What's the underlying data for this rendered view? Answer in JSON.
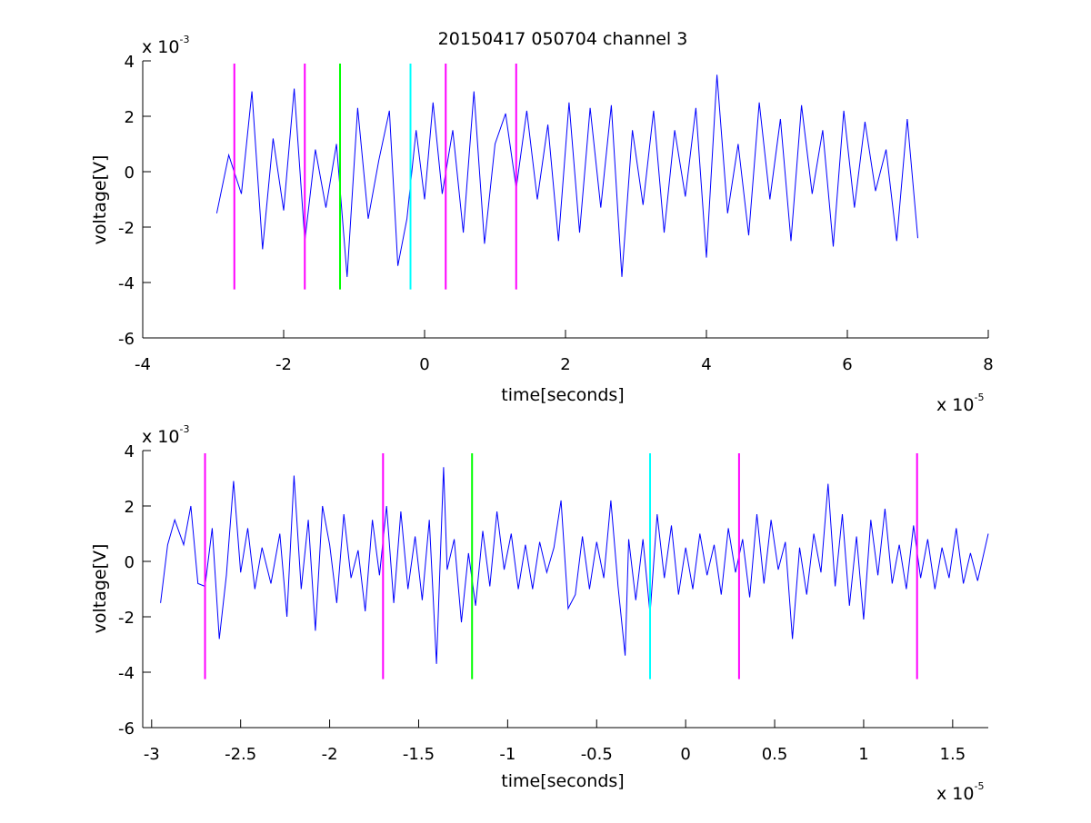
{
  "title": "20150417 050704 channel 3",
  "colors": {
    "signal": "#0000ff",
    "magenta": "#ff00ff",
    "green": "#00ff00",
    "cyan": "#00ffff",
    "axis": "#000000"
  },
  "chart_data": [
    {
      "type": "line",
      "title": "20150417 050704 channel 3",
      "xlabel": "time[seconds]",
      "ylabel": "voltage[V]",
      "x_scale_label": "x 10",
      "x_scale_power": "-5",
      "y_scale_label": "x 10",
      "y_scale_power": "-3",
      "xlim": [
        -4,
        8
      ],
      "ylim": [
        -6,
        4
      ],
      "xticks": [
        -4,
        -2,
        0,
        2,
        4,
        6,
        8
      ],
      "xtick_labels": [
        "-4",
        "-2",
        "0",
        "2",
        "4",
        "6",
        "8"
      ],
      "yticks": [
        -6,
        -4,
        -2,
        0,
        2,
        4
      ],
      "ytick_labels": [
        "-6",
        "-4",
        "-2",
        "0",
        "2",
        "4"
      ],
      "grid": false,
      "series": [
        {
          "color": "#0000ff",
          "x": [
            -2.95,
            -2.78,
            -2.6,
            -2.45,
            -2.3,
            -2.15,
            -2.0,
            -1.85,
            -1.7,
            -1.55,
            -1.4,
            -1.25,
            -1.1,
            -0.95,
            -0.8,
            -0.65,
            -0.5,
            -0.38,
            -0.25,
            -0.12,
            0.0,
            0.12,
            0.25,
            0.4,
            0.55,
            0.7,
            0.85,
            1.0,
            1.15,
            1.3,
            1.45,
            1.6,
            1.75,
            1.9,
            2.05,
            2.2,
            2.35,
            2.5,
            2.65,
            2.8,
            2.95,
            3.1,
            3.25,
            3.4,
            3.55,
            3.7,
            3.85,
            4.0,
            4.15,
            4.3,
            4.45,
            4.6,
            4.75,
            4.9,
            5.05,
            5.2,
            5.35,
            5.5,
            5.65,
            5.8,
            5.95,
            6.1,
            6.25,
            6.4,
            6.55,
            6.7,
            6.85,
            7.0
          ],
          "y": [
            -1.5,
            0.6,
            -0.8,
            2.9,
            -2.8,
            1.2,
            -1.4,
            3.0,
            -2.5,
            0.8,
            -1.3,
            1.0,
            -3.8,
            2.3,
            -1.7,
            0.4,
            2.2,
            -3.4,
            -1.7,
            1.5,
            -1.0,
            2.5,
            -0.8,
            1.5,
            -2.2,
            2.9,
            -2.6,
            1.0,
            2.1,
            -0.6,
            2.2,
            -1.0,
            1.7,
            -2.5,
            2.5,
            -2.2,
            2.3,
            -1.3,
            2.4,
            -3.8,
            1.5,
            -1.2,
            2.2,
            -2.2,
            1.5,
            -0.9,
            2.3,
            -3.1,
            3.5,
            -1.5,
            1.0,
            -2.3,
            2.5,
            -1.0,
            1.9,
            -2.5,
            2.4,
            -0.8,
            1.5,
            -2.7,
            2.2,
            -1.3,
            1.8,
            -0.7,
            0.8,
            -2.5,
            1.9,
            -2.4
          ]
        }
      ],
      "event_markers": [
        {
          "x": -2.7,
          "color": "#ff00ff"
        },
        {
          "x": -1.7,
          "color": "#ff00ff"
        },
        {
          "x": -1.2,
          "color": "#00ff00"
        },
        {
          "x": -0.2,
          "color": "#00ffff"
        },
        {
          "x": 0.3,
          "color": "#ff00ff"
        },
        {
          "x": 1.3,
          "color": "#ff00ff"
        }
      ],
      "marker_y_range": [
        -4.25,
        3.9
      ]
    },
    {
      "type": "line",
      "xlabel": "time[seconds]",
      "ylabel": "voltage[V]",
      "x_scale_label": "x 10",
      "x_scale_power": "-5",
      "y_scale_label": "x 10",
      "y_scale_power": "-3",
      "xlim": [
        -3.05,
        1.7
      ],
      "ylim": [
        -6,
        4
      ],
      "xticks": [
        -3,
        -2.5,
        -2,
        -1.5,
        -1,
        -0.5,
        0,
        0.5,
        1,
        1.5
      ],
      "xtick_labels": [
        "-3",
        "-2.5",
        "-2",
        "-1.5",
        "-1",
        "-0.5",
        "0",
        "0.5",
        "1",
        "1.5"
      ],
      "yticks": [
        -6,
        -4,
        -2,
        0,
        2,
        4
      ],
      "ytick_labels": [
        "-6",
        "-4",
        "-2",
        "0",
        "2",
        "4"
      ],
      "grid": false,
      "series": [
        {
          "color": "#0000ff",
          "x": [
            -2.95,
            -2.91,
            -2.87,
            -2.82,
            -2.78,
            -2.74,
            -2.7,
            -2.66,
            -2.62,
            -2.58,
            -2.54,
            -2.5,
            -2.46,
            -2.42,
            -2.38,
            -2.33,
            -2.28,
            -2.24,
            -2.2,
            -2.16,
            -2.12,
            -2.08,
            -2.04,
            -2.0,
            -1.96,
            -1.92,
            -1.88,
            -1.84,
            -1.8,
            -1.76,
            -1.72,
            -1.68,
            -1.64,
            -1.6,
            -1.56,
            -1.52,
            -1.48,
            -1.44,
            -1.4,
            -1.36,
            -1.34,
            -1.3,
            -1.26,
            -1.22,
            -1.18,
            -1.14,
            -1.1,
            -1.06,
            -1.02,
            -0.98,
            -0.94,
            -0.9,
            -0.86,
            -0.82,
            -0.78,
            -0.74,
            -0.7,
            -0.66,
            -0.62,
            -0.58,
            -0.54,
            -0.5,
            -0.46,
            -0.42,
            -0.38,
            -0.34,
            -0.32,
            -0.28,
            -0.24,
            -0.2,
            -0.16,
            -0.12,
            -0.08,
            -0.04,
            0.0,
            0.04,
            0.08,
            0.12,
            0.16,
            0.2,
            0.24,
            0.28,
            0.32,
            0.36,
            0.4,
            0.44,
            0.48,
            0.52,
            0.56,
            0.6,
            0.64,
            0.68,
            0.72,
            0.76,
            0.8,
            0.84,
            0.88,
            0.92,
            0.96,
            1.0,
            1.04,
            1.08,
            1.12,
            1.16,
            1.2,
            1.24,
            1.28,
            1.32,
            1.36,
            1.4,
            1.44,
            1.48,
            1.52,
            1.56,
            1.6,
            1.64,
            1.7
          ],
          "y": [
            -1.5,
            0.6,
            1.5,
            0.6,
            2.0,
            -0.8,
            -0.9,
            1.2,
            -2.8,
            -0.5,
            2.9,
            -0.4,
            1.2,
            -1.0,
            0.5,
            -0.8,
            1.0,
            -2.0,
            3.1,
            -1.0,
            1.5,
            -2.5,
            2.0,
            0.6,
            -1.5,
            1.7,
            -0.6,
            0.4,
            -1.8,
            1.5,
            -0.5,
            2.0,
            -1.5,
            1.8,
            -1.0,
            0.9,
            -1.4,
            1.5,
            -3.7,
            3.4,
            -0.3,
            0.8,
            -2.2,
            0.3,
            -1.6,
            1.1,
            -0.9,
            1.8,
            -0.3,
            1.0,
            -1.0,
            0.6,
            -1.0,
            0.7,
            -0.4,
            0.5,
            2.2,
            -1.7,
            -1.2,
            0.9,
            -1.0,
            0.7,
            -0.6,
            2.2,
            -0.9,
            -3.4,
            0.8,
            -1.4,
            0.8,
            -1.9,
            1.7,
            -0.6,
            1.3,
            -1.2,
            0.5,
            -1.0,
            1.0,
            -0.5,
            0.6,
            -1.2,
            1.2,
            -0.4,
            0.8,
            -1.3,
            1.7,
            -0.8,
            1.5,
            -0.3,
            0.7,
            -2.8,
            0.5,
            -1.2,
            1.0,
            -0.4,
            2.8,
            -0.9,
            1.7,
            -1.6,
            0.9,
            -2.1,
            1.5,
            -0.5,
            1.9,
            -0.8,
            0.6,
            -1.0,
            1.3,
            -0.6,
            0.8,
            -1.0,
            0.5,
            -0.6,
            1.2,
            -0.8,
            0.3,
            -0.7,
            1.0
          ]
        }
      ],
      "event_markers": [
        {
          "x": -2.7,
          "color": "#ff00ff"
        },
        {
          "x": -1.7,
          "color": "#ff00ff"
        },
        {
          "x": -1.2,
          "color": "#00ff00"
        },
        {
          "x": -0.2,
          "color": "#00ffff"
        },
        {
          "x": 0.3,
          "color": "#ff00ff"
        },
        {
          "x": 1.3,
          "color": "#ff00ff"
        }
      ],
      "marker_y_range": [
        -4.25,
        3.9
      ]
    }
  ]
}
